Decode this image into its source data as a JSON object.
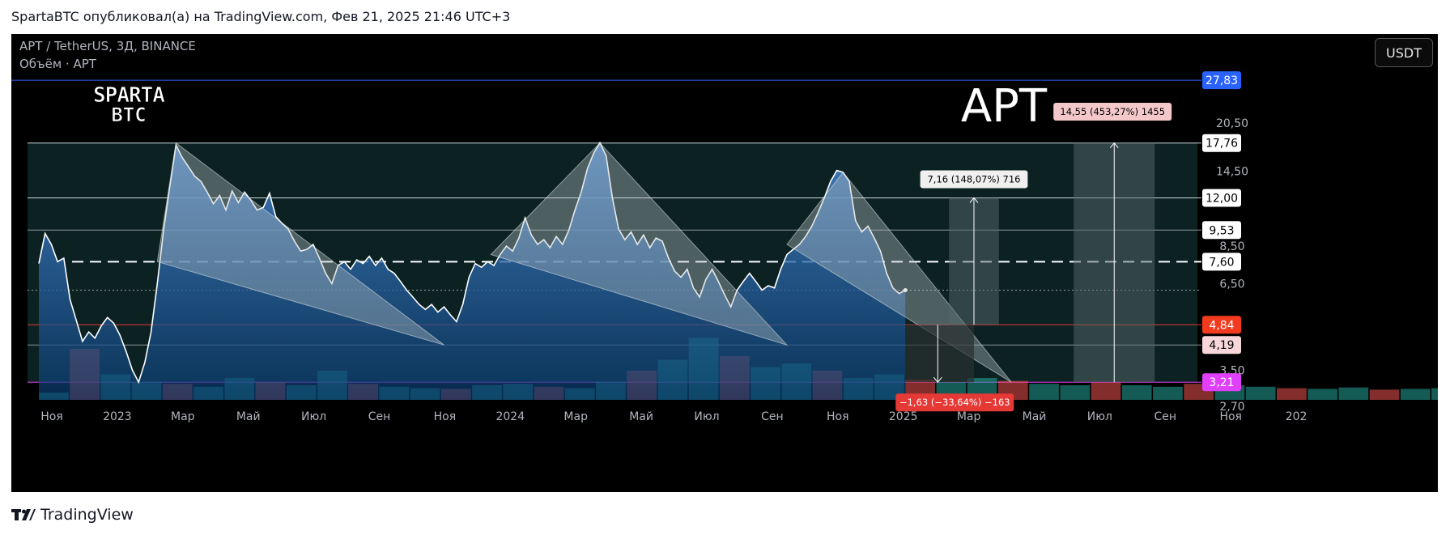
{
  "header": {
    "published_line": "SpartaBTC опубликовал(а) на TradingView.com, Фев 21, 2025 21:46 UTC+3"
  },
  "chart": {
    "symbol_line": "APT / TetherUS, 3Д, BINANCE",
    "volume_line": "Объём · APT",
    "currency_button": "USDT",
    "brand_logo_line1": "SPARTA",
    "brand_logo_line2": "BTC",
    "big_ticker": "APT"
  },
  "footer": {
    "brand": "TradingView"
  },
  "colors": {
    "background": "#000000",
    "price_line": "#ffffff",
    "area_top": "#4a8ad6",
    "area_bottom": "#0a3d73",
    "wedge_fill": "#b8c2c4",
    "support_red": "#e53935",
    "support_magenta": "#e040fb",
    "top_blue": "#2962ff",
    "vol_up": "#26a69a",
    "vol_down": "#ef5350"
  },
  "chart_data": {
    "type": "line",
    "scale": "log",
    "ylim": [
      2.55,
      32
    ],
    "x_tick_labels": [
      "Ноя",
      "2023",
      "Мар",
      "Май",
      "Июл",
      "Сен",
      "Ноя",
      "2024",
      "Мар",
      "Май",
      "Июл",
      "Сен",
      "Ноя",
      "2025",
      "Мар",
      "Май",
      "Июл",
      "Сен",
      "Ноя",
      "202"
    ],
    "y_tick_labels": [
      20.5,
      14.5,
      8.5,
      6.5,
      3.5,
      2.7
    ],
    "y_labels": [
      "20,50",
      "14,50",
      "8,50",
      "6,50",
      "3,50",
      "2,70"
    ],
    "price_tags": [
      {
        "label": "27,83",
        "value": 27.83,
        "bg": "#2962ff",
        "fg": "#ffffff"
      },
      {
        "label": "17,76",
        "value": 17.76,
        "bg": "#ffffff",
        "fg": "#000000"
      },
      {
        "label": "12,00",
        "value": 12.0,
        "bg": "#ffffff",
        "fg": "#000000"
      },
      {
        "label": "9,53",
        "value": 9.53,
        "bg": "#ffffff",
        "fg": "#000000"
      },
      {
        "label": "7,60",
        "value": 7.6,
        "bg": "#ffffff",
        "fg": "#000000"
      },
      {
        "label": "4,84",
        "value": 4.84,
        "bg": "#f23a1e",
        "fg": "#ffffff"
      },
      {
        "label": "4,19",
        "value": 4.19,
        "bg": "#f8d7da",
        "fg": "#000000"
      },
      {
        "label": "3,21",
        "value": 3.21,
        "bg": "#e040fb",
        "fg": "#ffffff"
      }
    ],
    "levels": [
      {
        "value": 17.76,
        "style": "solid",
        "color": "#cfd8dc"
      },
      {
        "value": 12.0,
        "style": "solid",
        "color": "#cfd8dc"
      },
      {
        "value": 9.53,
        "style": "solid",
        "color": "#8a9499"
      },
      {
        "value": 7.6,
        "style": "dashed",
        "color": "#ffffff"
      },
      {
        "value": 6.2,
        "style": "dotted",
        "color": "#9e9e9e"
      },
      {
        "value": 4.84,
        "style": "solid",
        "color": "#e53935"
      },
      {
        "value": 4.19,
        "style": "solid",
        "color": "#8a9499"
      },
      {
        "value": 3.21,
        "style": "solid",
        "color": "#e040fb"
      },
      {
        "value": 27.83,
        "style": "solid",
        "color": "#2962ff"
      }
    ],
    "series": [
      {
        "points": [
          [
            0.0,
            7.5
          ],
          [
            0.2,
            9.3
          ],
          [
            0.4,
            8.6
          ],
          [
            0.6,
            7.6
          ],
          [
            0.8,
            7.8
          ],
          [
            1.0,
            5.8
          ],
          [
            1.2,
            5.0
          ],
          [
            1.4,
            4.3
          ],
          [
            1.6,
            4.6
          ],
          [
            1.8,
            4.4
          ],
          [
            2.0,
            4.8
          ],
          [
            2.2,
            5.1
          ],
          [
            2.4,
            4.9
          ],
          [
            2.6,
            4.5
          ],
          [
            2.8,
            4.0
          ],
          [
            3.0,
            3.5
          ],
          [
            3.2,
            3.21
          ],
          [
            3.4,
            3.7
          ],
          [
            3.6,
            4.6
          ],
          [
            3.8,
            6.5
          ],
          [
            4.0,
            9.5
          ],
          [
            4.2,
            13.0
          ],
          [
            4.4,
            17.5
          ],
          [
            4.6,
            16.0
          ],
          [
            4.8,
            15.0
          ],
          [
            5.0,
            14.0
          ],
          [
            5.2,
            13.5
          ],
          [
            5.4,
            12.5
          ],
          [
            5.6,
            11.5
          ],
          [
            5.8,
            12.2
          ],
          [
            6.0,
            11.0
          ],
          [
            6.2,
            12.6
          ],
          [
            6.4,
            11.6
          ],
          [
            6.6,
            12.5
          ],
          [
            6.8,
            11.8
          ],
          [
            7.0,
            11.0
          ],
          [
            7.2,
            11.2
          ],
          [
            7.4,
            12.4
          ],
          [
            7.6,
            10.5
          ],
          [
            7.8,
            10.0
          ],
          [
            8.0,
            9.6
          ],
          [
            8.2,
            8.8
          ],
          [
            8.4,
            8.2
          ],
          [
            8.6,
            8.3
          ],
          [
            8.8,
            8.6
          ],
          [
            9.0,
            7.8
          ],
          [
            9.2,
            7.0
          ],
          [
            9.4,
            6.5
          ],
          [
            9.6,
            7.4
          ],
          [
            9.8,
            7.6
          ],
          [
            10.0,
            7.2
          ],
          [
            10.2,
            7.7
          ],
          [
            10.4,
            7.5
          ],
          [
            10.6,
            7.9
          ],
          [
            10.8,
            7.4
          ],
          [
            11.0,
            7.8
          ],
          [
            11.2,
            7.2
          ],
          [
            11.4,
            7.0
          ],
          [
            11.6,
            6.6
          ],
          [
            11.8,
            6.2
          ],
          [
            12.0,
            5.9
          ],
          [
            12.2,
            5.6
          ],
          [
            12.4,
            5.4
          ],
          [
            12.6,
            5.6
          ],
          [
            12.8,
            5.3
          ],
          [
            13.0,
            5.5
          ],
          [
            13.2,
            5.2
          ],
          [
            13.4,
            4.95
          ],
          [
            13.6,
            5.6
          ],
          [
            13.8,
            6.8
          ],
          [
            14.0,
            7.5
          ],
          [
            14.2,
            7.3
          ],
          [
            14.4,
            7.6
          ],
          [
            14.6,
            7.4
          ],
          [
            14.8,
            8.0
          ],
          [
            15.0,
            8.5
          ],
          [
            15.2,
            8.2
          ],
          [
            15.4,
            9.0
          ],
          [
            15.6,
            10.4
          ],
          [
            15.8,
            9.2
          ],
          [
            16.0,
            8.6
          ],
          [
            16.2,
            8.9
          ],
          [
            16.4,
            8.4
          ],
          [
            16.6,
            9.1
          ],
          [
            16.8,
            8.6
          ],
          [
            17.0,
            9.5
          ],
          [
            17.2,
            11.0
          ],
          [
            17.4,
            12.5
          ],
          [
            17.6,
            14.8
          ],
          [
            17.8,
            16.5
          ],
          [
            18.0,
            17.8
          ],
          [
            18.2,
            16.2
          ],
          [
            18.4,
            12.0
          ],
          [
            18.6,
            9.6
          ],
          [
            18.8,
            8.9
          ],
          [
            19.0,
            9.4
          ],
          [
            19.2,
            8.6
          ],
          [
            19.4,
            9.2
          ],
          [
            19.6,
            8.4
          ],
          [
            19.8,
            9.0
          ],
          [
            20.0,
            8.8
          ],
          [
            20.2,
            7.8
          ],
          [
            20.4,
            7.1
          ],
          [
            20.6,
            6.8
          ],
          [
            20.8,
            7.2
          ],
          [
            21.0,
            6.3
          ],
          [
            21.2,
            5.9
          ],
          [
            21.4,
            6.7
          ],
          [
            21.6,
            7.2
          ],
          [
            21.8,
            6.6
          ],
          [
            22.0,
            6.0
          ],
          [
            22.2,
            5.5
          ],
          [
            22.4,
            6.2
          ],
          [
            22.6,
            6.6
          ],
          [
            22.8,
            7.0
          ],
          [
            23.0,
            6.6
          ],
          [
            23.2,
            6.2
          ],
          [
            23.4,
            6.4
          ],
          [
            23.6,
            6.3
          ],
          [
            23.8,
            7.2
          ],
          [
            24.0,
            8.0
          ],
          [
            24.2,
            8.3
          ],
          [
            24.4,
            8.6
          ],
          [
            24.6,
            9.1
          ],
          [
            24.8,
            9.8
          ],
          [
            25.0,
            10.8
          ],
          [
            25.2,
            12.0
          ],
          [
            25.4,
            13.5
          ],
          [
            25.6,
            14.6
          ],
          [
            25.8,
            14.4
          ],
          [
            26.0,
            13.5
          ],
          [
            26.2,
            10.2
          ],
          [
            26.4,
            9.4
          ],
          [
            26.6,
            9.8
          ],
          [
            26.8,
            9.0
          ],
          [
            27.0,
            8.2
          ],
          [
            27.2,
            7.0
          ],
          [
            27.4,
            6.3
          ],
          [
            27.6,
            6.05
          ],
          [
            27.8,
            6.2
          ]
        ]
      }
    ],
    "volumes": [
      0.1,
      0.7,
      0.35,
      0.25,
      0.22,
      0.18,
      0.3,
      0.24,
      0.2,
      0.4,
      0.22,
      0.18,
      0.16,
      0.15,
      0.2,
      0.22,
      0.18,
      0.16,
      0.25,
      0.4,
      0.55,
      0.85,
      0.6,
      0.45,
      0.5,
      0.4,
      0.3,
      0.35,
      0.28,
      0.25,
      0.3,
      0.26,
      0.22,
      0.2,
      0.24,
      0.2,
      0.18,
      0.22,
      0.2,
      0.18,
      0.16,
      0.15,
      0.17,
      0.14,
      0.15,
      0.16,
      0.18,
      0.2,
      0.16,
      0.14,
      0.12,
      0.14,
      0.13,
      0.15,
      0.12,
      0.13,
      0.12,
      0.11,
      0.1,
      0.12,
      0.11,
      0.1,
      0.12,
      0.11,
      0.1,
      0.13,
      0.12,
      0.14,
      0.3,
      0.25,
      0.22,
      0.2,
      0.18,
      0.22,
      0.2,
      0.24,
      0.28,
      0.22,
      0.2,
      0.18,
      0.16,
      0.18,
      0.17,
      0.2,
      0.18,
      0.22,
      0.3,
      0.35,
      0.4,
      0.38,
      0.34,
      0.3,
      0.26,
      0.22,
      0.2,
      0.18,
      0.16,
      0.15,
      0.14,
      0.13,
      0.14,
      0.16,
      0.15,
      0.17,
      0.16,
      0.15,
      0.14,
      0.16,
      0.18,
      0.2,
      0.22,
      0.24,
      0.22,
      0.2,
      0.18,
      0.17,
      0.16,
      0.18,
      0.2,
      0.22,
      0.25,
      0.3,
      0.35,
      0.4,
      0.48,
      0.55,
      0.5,
      0.45,
      0.4,
      0.35,
      0.3,
      0.26,
      0.35,
      0.45,
      0.55,
      0.4,
      0.3,
      0.25,
      0.2,
      0.18
    ],
    "wedges": [
      {
        "points": [
          [
            4.4,
            17.76
          ],
          [
            13.0,
            4.19
          ],
          [
            3.8,
            7.6
          ]
        ]
      },
      {
        "points": [
          [
            18.0,
            17.76
          ],
          [
            24.0,
            4.19
          ],
          [
            14.5,
            8.0
          ]
        ]
      },
      {
        "points": [
          [
            25.8,
            14.4
          ],
          [
            31.2,
            3.21
          ],
          [
            24.0,
            8.6
          ]
        ]
      }
    ],
    "projections": [
      {
        "label": "7,16 (148,07%) 716",
        "x_from": 29.2,
        "x_to": 30.8,
        "y_from": 4.84,
        "y_to": 12.0,
        "label_bg": "#f0f0f0",
        "label_fg": "#000000"
      },
      {
        "label": "14,55 (453,27%) 1455",
        "x_from": 33.2,
        "x_to": 35.8,
        "y_from": 3.21,
        "y_to": 17.76,
        "label_bg": "#f4c7c8",
        "label_fg": "#000000"
      },
      {
        "label": "−1,63 (−33,64%) −163",
        "x_from": 27.8,
        "x_to": 30.0,
        "y_from": 4.84,
        "y_to": 3.21,
        "label_bg": "#e53935",
        "label_fg": "#ffffff"
      }
    ]
  }
}
